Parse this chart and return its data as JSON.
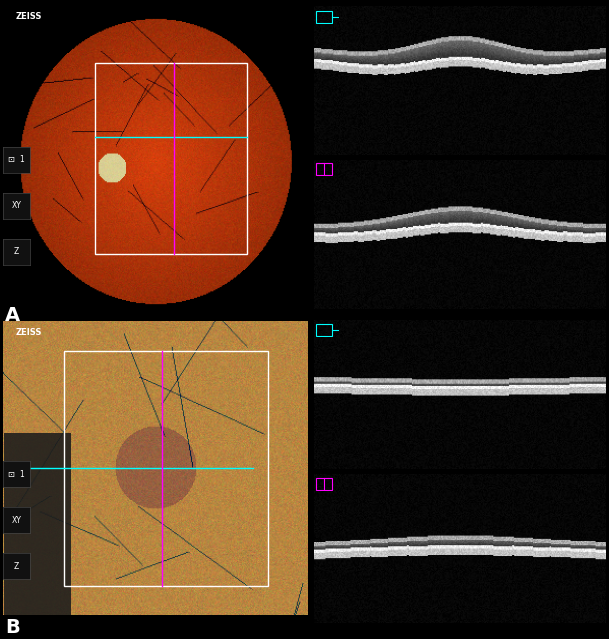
{
  "background_color": "#000000",
  "fig_width": 6.09,
  "fig_height": 6.39,
  "dpi": 100,
  "panel_A_label": "A",
  "panel_B_label": "B",
  "label_color": "#ffffff",
  "label_fontsize": 14,
  "zeiss_bg": "#1a4fac",
  "zeiss_text": "ZEISS",
  "zeiss_text_color": "#ffffff",
  "zeiss_fontsize": 6
}
